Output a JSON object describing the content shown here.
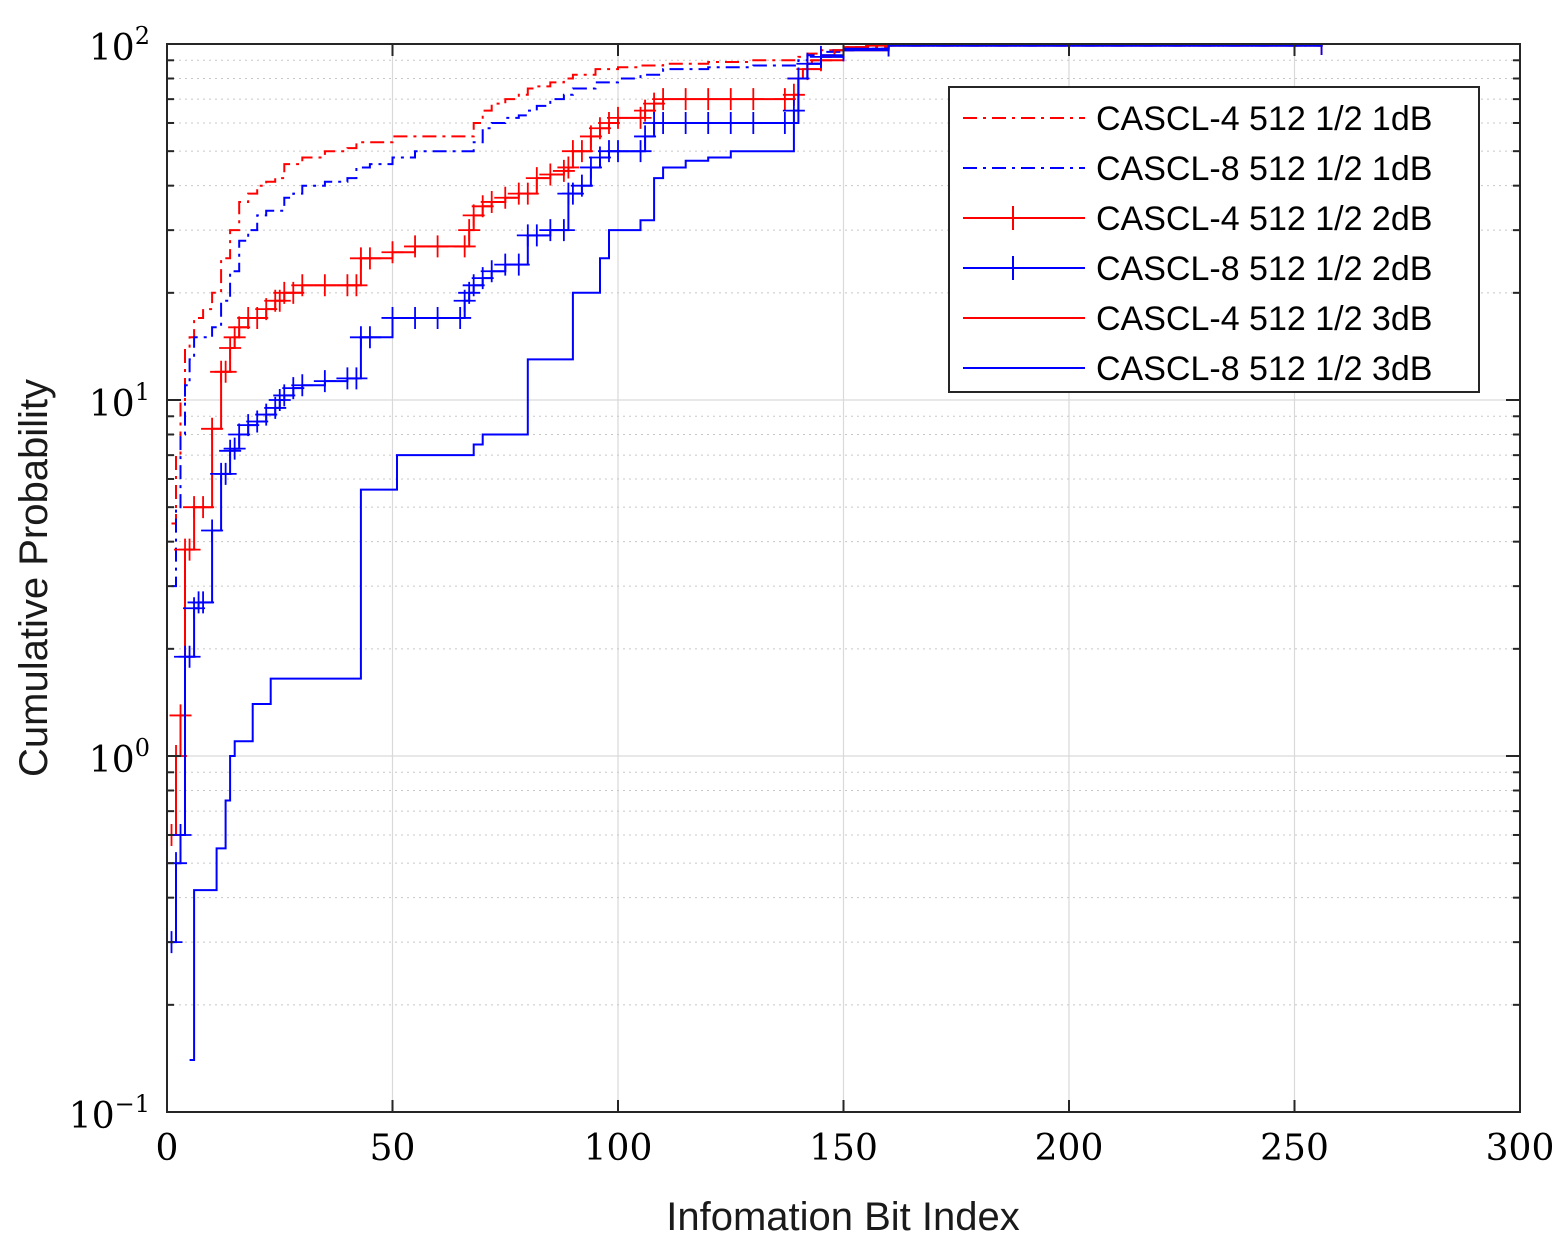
{
  "chart_data": {
    "type": "line",
    "title": "",
    "xlabel": "Infomation Bit Index",
    "ylabel": "Cumulative Probability",
    "xlim": [
      0,
      300
    ],
    "ylim": [
      0.1,
      100
    ],
    "yscale": "log",
    "grid": true,
    "legend_position": "top-right",
    "x_ticks": [
      {
        "value": 0,
        "label": "0"
      },
      {
        "value": 50,
        "label": "50"
      },
      {
        "value": 100,
        "label": "100"
      },
      {
        "value": 150,
        "label": "150"
      },
      {
        "value": 200,
        "label": "200"
      },
      {
        "value": 250,
        "label": "250"
      },
      {
        "value": 300,
        "label": "300"
      }
    ],
    "y_ticks": [
      {
        "value": 0.1,
        "base": "10",
        "exp": "−1"
      },
      {
        "value": 1,
        "base": "10",
        "exp": "0"
      },
      {
        "value": 10,
        "base": "10",
        "exp": "1"
      },
      {
        "value": 100,
        "base": "10",
        "exp": "2"
      }
    ],
    "series": [
      {
        "name": "CASCL-4 512 1/2 1dB",
        "color": "#ff0000",
        "style": "dashdot",
        "marker": "none",
        "x": [
          1,
          2,
          3,
          4,
          5,
          6,
          8,
          10,
          12,
          14,
          16,
          18,
          20,
          22,
          24,
          26,
          30,
          35,
          40,
          42,
          45,
          50,
          55,
          60,
          66,
          68,
          70,
          72,
          75,
          78,
          80,
          82,
          85,
          88,
          90,
          95,
          100,
          105,
          110,
          120,
          130,
          138,
          140,
          142,
          145,
          150,
          160,
          256
        ],
        "y": [
          4.5,
          7,
          10,
          14,
          15,
          17,
          18,
          20,
          25,
          30,
          36,
          38,
          40,
          41,
          42,
          46,
          48,
          50,
          51,
          53,
          53,
          55,
          55,
          55,
          55,
          60,
          65,
          68,
          70,
          72,
          75,
          76,
          78,
          80,
          82,
          85,
          86,
          87,
          88,
          89,
          90,
          90,
          92,
          94,
          96,
          98,
          99,
          100
        ]
      },
      {
        "name": "CASCL-8 512 1/2 1dB",
        "color": "#0000ff",
        "style": "dashdot",
        "marker": "none",
        "x": [
          1,
          2,
          3,
          4,
          5,
          6,
          8,
          10,
          12,
          14,
          16,
          18,
          20,
          22,
          24,
          26,
          28,
          30,
          35,
          40,
          42,
          45,
          50,
          55,
          60,
          66,
          68,
          70,
          72,
          75,
          78,
          80,
          82,
          85,
          88,
          90,
          95,
          100,
          105,
          110,
          120,
          130,
          138,
          140,
          142,
          145,
          150,
          160,
          256
        ],
        "y": [
          3,
          5,
          8,
          11,
          13,
          15,
          15,
          16,
          19,
          23,
          28,
          30,
          33,
          34,
          34,
          37,
          38,
          40,
          41,
          42,
          45,
          46,
          48,
          50,
          50,
          50,
          53,
          58,
          60,
          62,
          63,
          65,
          67,
          70,
          72,
          75,
          78,
          80,
          82,
          85,
          86,
          87,
          87,
          90,
          93,
          95,
          97,
          99,
          100
        ]
      },
      {
        "name": "CASCL-4 512 1/2 2dB",
        "color": "#ff0000",
        "style": "solid",
        "marker": "plus",
        "x": [
          1,
          2,
          3,
          4,
          5,
          6,
          8,
          10,
          12,
          13,
          14,
          15,
          16,
          18,
          20,
          22,
          24,
          25,
          26,
          28,
          30,
          35,
          40,
          42,
          43,
          45,
          50,
          55,
          60,
          66,
          67,
          68,
          70,
          72,
          75,
          78,
          80,
          82,
          85,
          88,
          89,
          90,
          92,
          94,
          96,
          98,
          100,
          105,
          106,
          108,
          110,
          115,
          120,
          125,
          130,
          137,
          139,
          140,
          142,
          145,
          150,
          160,
          256
        ],
        "y": [
          0.6,
          1.0,
          1.3,
          3.8,
          3.8,
          5.0,
          5.0,
          8.3,
          12,
          12,
          14,
          15,
          16,
          17,
          17,
          18,
          19,
          19,
          20,
          20,
          21,
          21,
          21,
          21,
          25,
          25,
          26,
          27,
          27,
          27,
          30,
          33,
          35,
          36,
          37,
          38,
          38,
          42,
          43,
          44,
          45,
          50,
          50,
          55,
          58,
          60,
          62,
          62,
          65,
          68,
          70,
          70,
          70,
          70,
          70,
          70,
          72,
          80,
          85,
          90,
          96,
          99,
          100
        ]
      },
      {
        "name": "CASCL-8 512 1/2 2dB",
        "color": "#0000ff",
        "style": "solid",
        "marker": "plus",
        "x": [
          1,
          2,
          3,
          4,
          5,
          6,
          7,
          8,
          10,
          12,
          13,
          14,
          15,
          16,
          18,
          20,
          22,
          24,
          25,
          26,
          28,
          30,
          35,
          40,
          42,
          43,
          45,
          50,
          55,
          60,
          65,
          66,
          67,
          68,
          70,
          72,
          75,
          78,
          80,
          82,
          85,
          88,
          89,
          90,
          92,
          94,
          96,
          98,
          100,
          105,
          106,
          108,
          110,
          115,
          120,
          125,
          130,
          137,
          139,
          140,
          142,
          145,
          150,
          160,
          256
        ],
        "y": [
          0.3,
          0.5,
          0.6,
          1.9,
          1.9,
          2.6,
          2.7,
          2.7,
          4.3,
          6.2,
          6.2,
          7.2,
          7.3,
          8,
          8.5,
          8.7,
          9.1,
          9.5,
          10,
          10.3,
          10.8,
          11,
          11.3,
          11.5,
          11.5,
          15,
          15,
          17,
          17,
          17,
          17,
          19,
          20,
          21,
          22,
          23,
          24,
          24,
          29,
          29,
          30,
          30,
          38,
          38,
          40,
          45,
          48,
          50,
          50,
          50,
          55,
          60,
          60,
          60,
          60,
          60,
          60,
          60,
          65,
          80,
          88,
          92,
          96,
          99,
          100
        ]
      },
      {
        "name": "CASCL-4 512 1/2 3dB",
        "color": "#ff0000",
        "style": "solid",
        "marker": "none",
        "x": [
          140,
          141,
          142,
          143,
          145,
          148,
          150,
          155,
          160,
          170,
          256
        ],
        "y": [
          80,
          85,
          88,
          90,
          93,
          96,
          98,
          99,
          99.5,
          100,
          100
        ]
      },
      {
        "name": "CASCL-8 512 1/2 3dB",
        "color": "#0000ff",
        "style": "solid",
        "marker": "none",
        "x": [
          5,
          6,
          9,
          10,
          11,
          12,
          13,
          14,
          15,
          18,
          19,
          20,
          22,
          23,
          25,
          28,
          30,
          35,
          40,
          42,
          43,
          50,
          51,
          55,
          60,
          65,
          68,
          70,
          72,
          75,
          79,
          80,
          85,
          89,
          90,
          91,
          95,
          96,
          98,
          100,
          105,
          108,
          110,
          115,
          120,
          125,
          138,
          139,
          140,
          142,
          145,
          150,
          160,
          256
        ],
        "y": [
          0.14,
          0.42,
          0.42,
          0.42,
          0.55,
          0.55,
          0.75,
          1.0,
          1.1,
          1.1,
          1.4,
          1.4,
          1.4,
          1.65,
          1.65,
          1.65,
          1.65,
          1.65,
          1.65,
          1.65,
          5.6,
          5.6,
          7,
          7,
          7,
          7,
          7.5,
          8,
          8,
          8,
          8,
          13,
          13,
          13,
          20,
          20,
          20,
          25,
          30,
          30,
          32,
          42,
          45,
          47,
          48,
          50,
          50,
          60,
          80,
          88,
          93,
          97,
          99,
          100
        ]
      }
    ]
  }
}
